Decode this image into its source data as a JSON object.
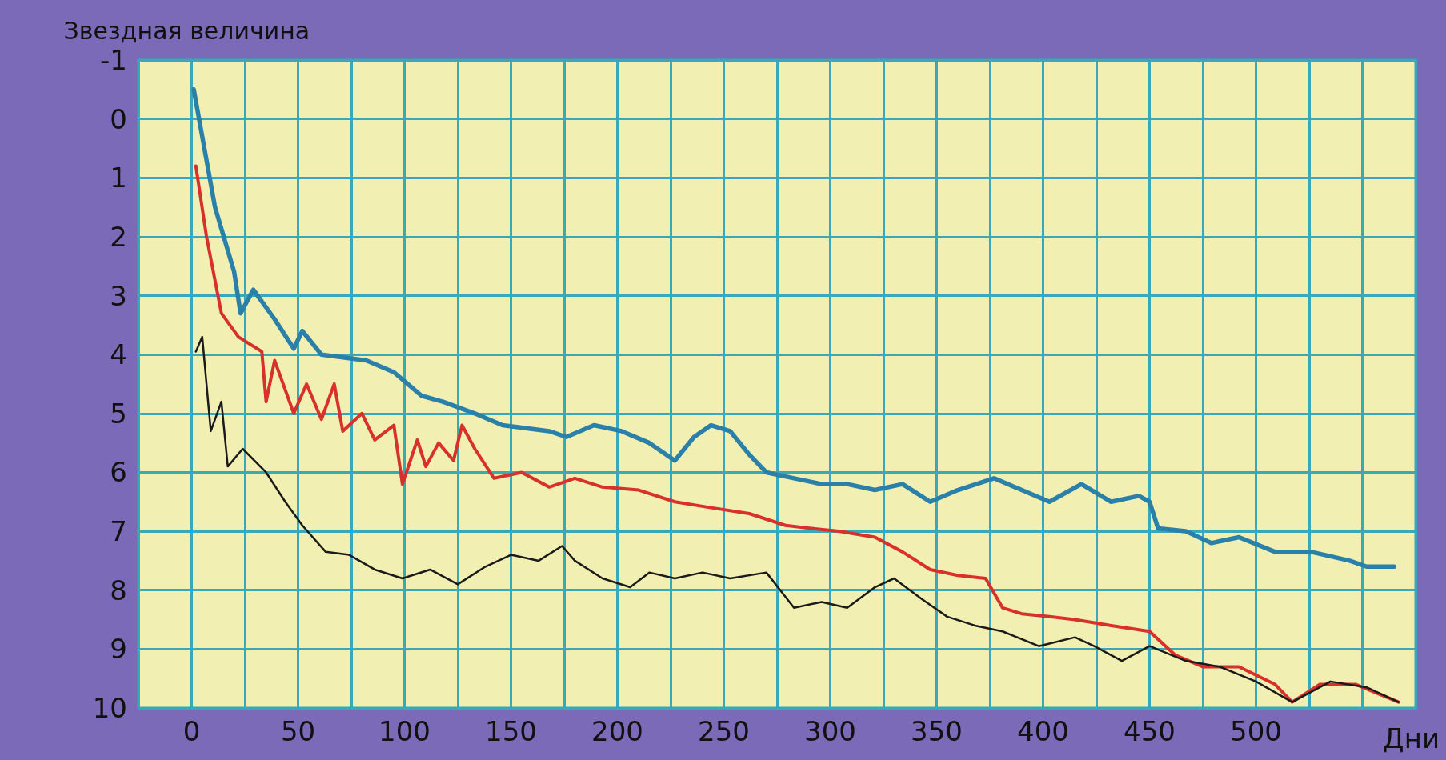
{
  "chart_data": {
    "type": "line",
    "ylabel": "Звездная величина",
    "xlabel": "Дни",
    "xlim": [
      -25,
      575
    ],
    "xticks": [
      {
        "value": -25,
        "label": null
      },
      0,
      {
        "value": 25,
        "label": null
      },
      50,
      {
        "value": 75,
        "label": null
      },
      100,
      {
        "value": 125,
        "label": null
      },
      150,
      {
        "value": 175,
        "label": null
      },
      200,
      {
        "value": 225,
        "label": null
      },
      250,
      {
        "value": 275,
        "label": null
      },
      300,
      {
        "value": 325,
        "label": null
      },
      350,
      {
        "value": 375,
        "label": null
      },
      400,
      {
        "value": 425,
        "label": null
      },
      450,
      {
        "value": 475,
        "label": null
      },
      500,
      {
        "value": 525,
        "label": null
      },
      {
        "value": 550,
        "label": null
      },
      {
        "value": 575,
        "label": null
      }
    ],
    "ylim": [
      10,
      -1
    ],
    "yticks": [
      -1,
      0,
      1,
      2,
      3,
      4,
      5,
      6,
      7,
      8,
      9,
      10
    ],
    "grid": true,
    "marker": "none",
    "line_style": "solid",
    "series": [
      {
        "color": "#2a80a8",
        "x": [
          1,
          11,
          20,
          23,
          29,
          39,
          48,
          52,
          61,
          82,
          95,
          108,
          118,
          133,
          146,
          168,
          176,
          189,
          202,
          215,
          227,
          236,
          244,
          253,
          262,
          270,
          283,
          296,
          308,
          321,
          334,
          347,
          360,
          377,
          390,
          403,
          418,
          432,
          445,
          450,
          454,
          467,
          479,
          492,
          509,
          526,
          544,
          552,
          565
        ],
        "values": [
          -0.5,
          1.5,
          2.6,
          3.3,
          2.9,
          3.4,
          3.9,
          3.6,
          4.0,
          4.1,
          4.3,
          4.7,
          4.8,
          5.0,
          5.2,
          5.3,
          5.4,
          5.2,
          5.3,
          5.5,
          5.8,
          5.4,
          5.2,
          5.3,
          5.7,
          6.0,
          6.1,
          6.2,
          6.2,
          6.3,
          6.2,
          6.5,
          6.3,
          6.1,
          6.3,
          6.5,
          6.2,
          6.5,
          6.4,
          6.5,
          6.95,
          7.0,
          7.2,
          7.1,
          7.35,
          7.35,
          7.5,
          7.6,
          7.6
        ]
      },
      {
        "color": "#d8302a",
        "x": [
          2,
          7,
          14,
          22,
          33,
          35,
          39,
          48,
          54,
          61,
          67,
          71,
          80,
          86,
          95,
          99,
          106,
          110,
          116,
          123,
          127,
          133,
          142,
          155,
          168,
          180,
          193,
          210,
          227,
          244,
          262,
          279,
          291,
          304,
          321,
          334,
          347,
          360,
          373,
          381,
          390,
          403,
          415,
          432,
          450,
          462,
          475,
          492,
          509,
          517,
          530,
          547,
          567
        ],
        "values": [
          0.8,
          2.0,
          3.3,
          3.7,
          3.95,
          4.8,
          4.1,
          5.0,
          4.5,
          5.1,
          4.5,
          5.3,
          5.0,
          5.45,
          5.2,
          6.2,
          5.45,
          5.9,
          5.5,
          5.8,
          5.2,
          5.6,
          6.1,
          6.0,
          6.25,
          6.1,
          6.25,
          6.3,
          6.5,
          6.6,
          6.7,
          6.9,
          6.95,
          7.0,
          7.1,
          7.35,
          7.65,
          7.75,
          7.8,
          8.3,
          8.4,
          8.45,
          8.5,
          8.6,
          8.7,
          9.1,
          9.3,
          9.3,
          9.6,
          9.9,
          9.6,
          9.6,
          9.9
        ]
      },
      {
        "color": "#1a1a1a",
        "x": [
          2,
          5,
          9,
          14,
          17,
          24,
          35,
          44,
          52,
          63,
          74,
          86,
          99,
          112,
          125,
          138,
          150,
          163,
          174,
          180,
          193,
          206,
          215,
          227,
          240,
          253,
          270,
          283,
          296,
          308,
          321,
          330,
          343,
          355,
          368,
          381,
          398,
          415,
          424,
          437,
          450,
          467,
          483,
          500,
          517,
          535,
          552,
          567
        ],
        "values": [
          3.95,
          3.7,
          5.3,
          4.8,
          5.9,
          5.6,
          6.0,
          6.5,
          6.9,
          7.35,
          7.4,
          7.65,
          7.8,
          7.65,
          7.9,
          7.6,
          7.4,
          7.5,
          7.25,
          7.5,
          7.8,
          7.95,
          7.7,
          7.8,
          7.7,
          7.8,
          7.7,
          8.3,
          8.2,
          8.3,
          7.95,
          7.8,
          8.15,
          8.45,
          8.6,
          8.7,
          8.95,
          8.8,
          8.95,
          9.2,
          8.95,
          9.2,
          9.3,
          9.55,
          9.9,
          9.55,
          9.65,
          9.9
        ]
      }
    ]
  }
}
